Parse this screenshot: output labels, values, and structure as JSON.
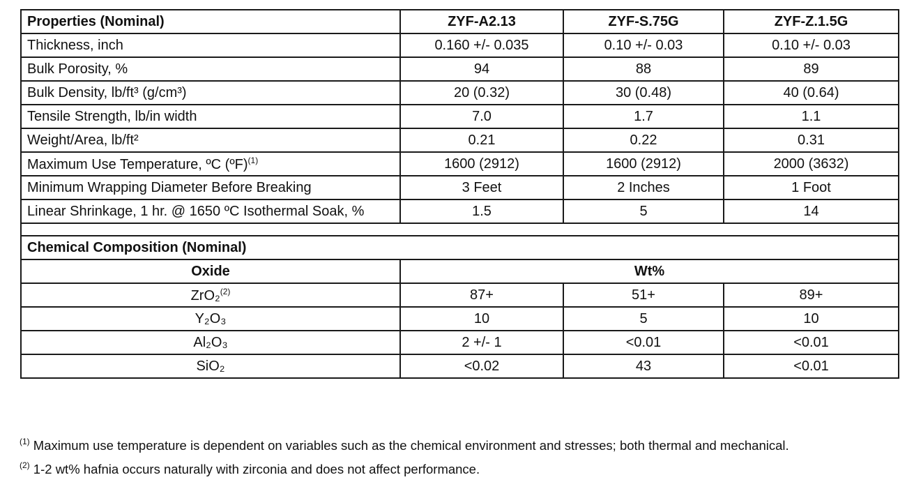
{
  "properties": {
    "header": [
      "Properties (Nominal)",
      "ZYF-A2.13",
      "ZYF-S.75G",
      "ZYF-Z.1.5G"
    ],
    "rows": [
      {
        "label": "Thickness, inch",
        "values": [
          "0.160 +/- 0.035",
          "0.10 +/- 0.03",
          "0.10 +/- 0.03"
        ]
      },
      {
        "label": "Bulk Porosity, %",
        "values": [
          "94",
          "88",
          "89"
        ]
      },
      {
        "label": "Bulk Density, lb/ft³ (g/cm³)",
        "values": [
          "20 (0.32)",
          "30 (0.48)",
          "40 (0.64)"
        ]
      },
      {
        "label": "Tensile Strength, lb/in width",
        "values": [
          "7.0",
          "1.7",
          "1.1"
        ]
      },
      {
        "label": "Weight/Area, lb/ft²",
        "values": [
          "0.21",
          "0.22",
          "0.31"
        ]
      },
      {
        "label": "Maximum Use Temperature, ºC (ºF)",
        "note": "(1)",
        "values": [
          "1600 (2912)",
          "1600 (2912)",
          "2000 (3632)"
        ]
      },
      {
        "label": "Minimum Wrapping Diameter Before Breaking",
        "values": [
          "3 Feet",
          "2 Inches",
          "1 Foot"
        ]
      },
      {
        "label": "Linear Shrinkage, 1 hr. @ 1650 ºC Isothermal Soak, %",
        "values": [
          "1.5",
          "5",
          "14"
        ]
      }
    ]
  },
  "chemical": {
    "title": "Chemical Composition (Nominal)",
    "header": [
      "Oxide",
      "Wt%"
    ],
    "rows": [
      {
        "oxide": "ZrO₂",
        "note": "(2)",
        "values": [
          "87+",
          "51+",
          "89+"
        ]
      },
      {
        "oxide": "Y₂O₃",
        "values": [
          "10",
          "5",
          "10"
        ]
      },
      {
        "oxide": "Al₂O₃",
        "values": [
          "2 +/- 1",
          "<0.01",
          "<0.01"
        ]
      },
      {
        "oxide": "SiO₂",
        "values": [
          "<0.02",
          "43",
          "<0.01"
        ]
      }
    ]
  },
  "footnotes": [
    {
      "mark": "(1)",
      "text": " Maximum use temperature is dependent on variables such as the chemical environment and stresses; both thermal and mechanical."
    },
    {
      "mark": "(2)",
      "text": " 1-2 wt% hafnia occurs naturally with zirconia and does not affect performance."
    }
  ]
}
